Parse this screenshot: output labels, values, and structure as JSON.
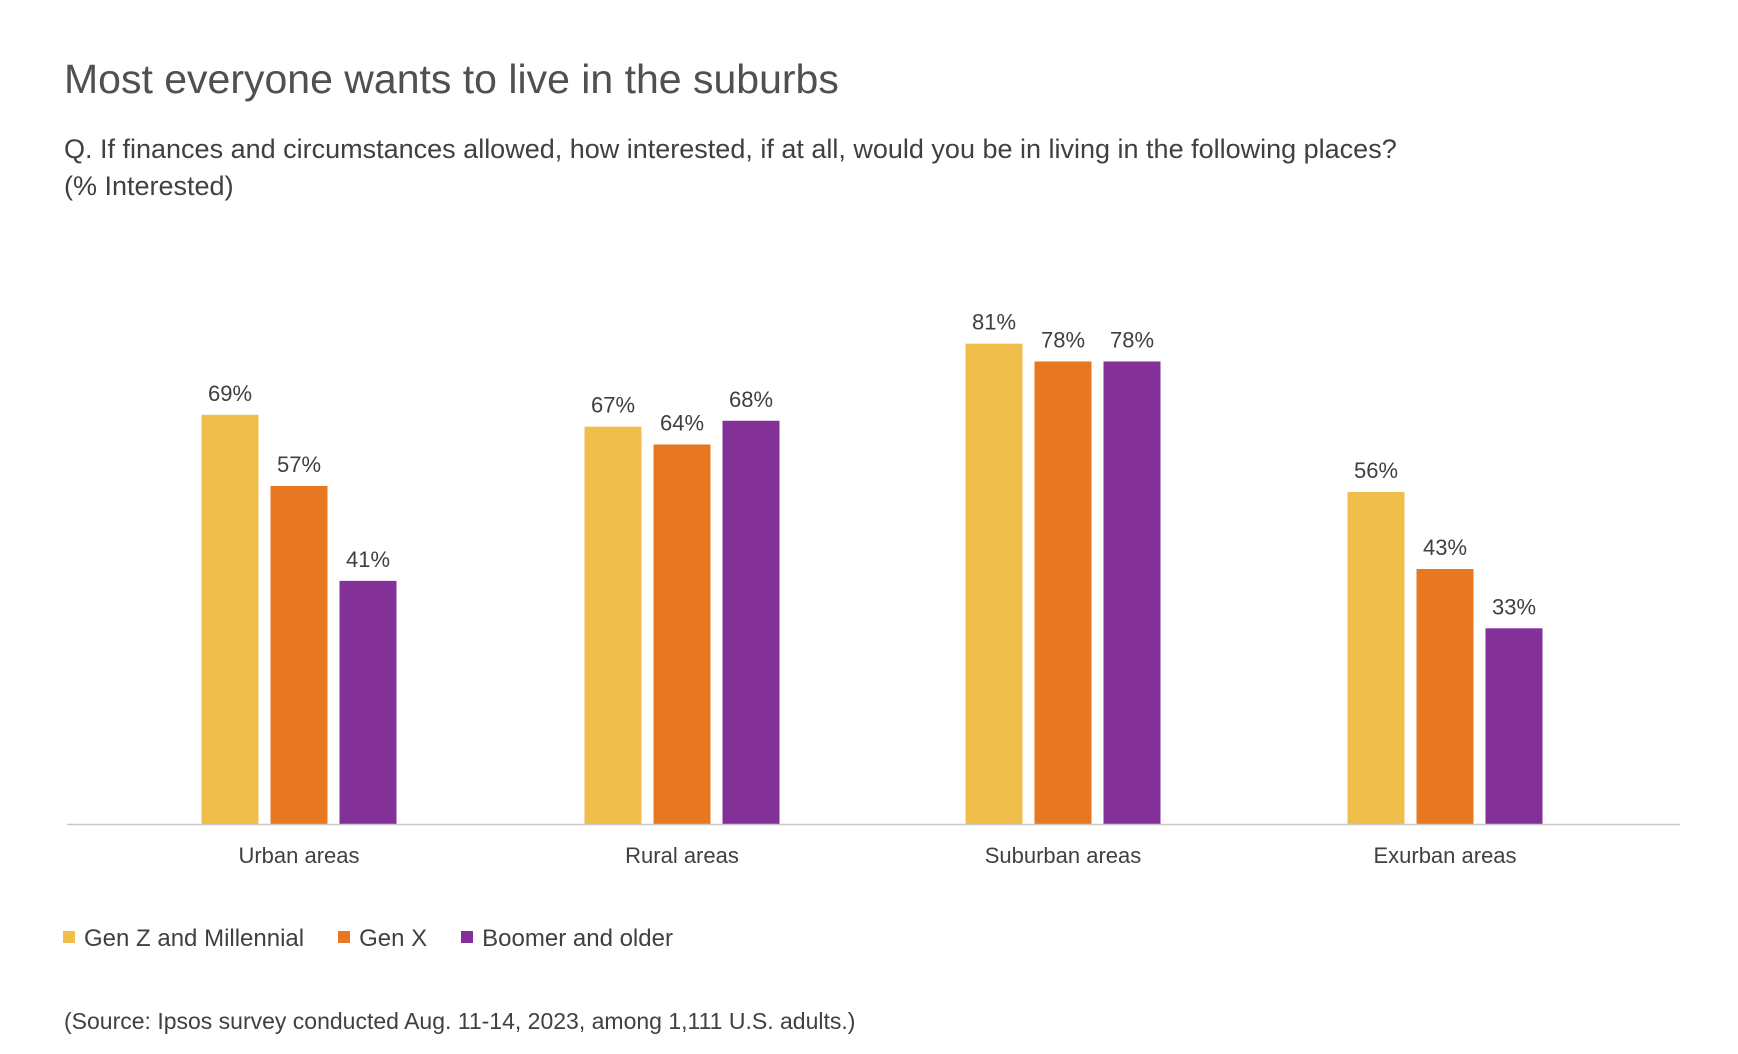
{
  "chart_data": {
    "type": "bar",
    "title": "Most everyone wants to live in the suburbs",
    "subtitle_line1": "Q. If finances and circumstances allowed, how interested, if at all, would you be in living in the following places?",
    "subtitle_line2": "(% Interested)",
    "categories": [
      "Urban areas",
      "Rural areas",
      "Suburban areas",
      "Exurban areas"
    ],
    "series": [
      {
        "name": "Gen Z and Millennial",
        "color": "#F0BE4A",
        "values": [
          69,
          67,
          81,
          56
        ]
      },
      {
        "name": "Gen X",
        "color": "#E87722",
        "values": [
          57,
          64,
          78,
          43
        ]
      },
      {
        "name": "Boomer and older",
        "color": "#833199",
        "values": [
          41,
          68,
          78,
          33
        ]
      }
    ],
    "value_suffix": "%",
    "ylim": [
      0,
      100
    ],
    "grid": false,
    "legend_position": "bottom-left",
    "source": "(Source: Ipsos survey conducted Aug. 11-14, 2023, among 1,111 U.S. adults.)"
  }
}
